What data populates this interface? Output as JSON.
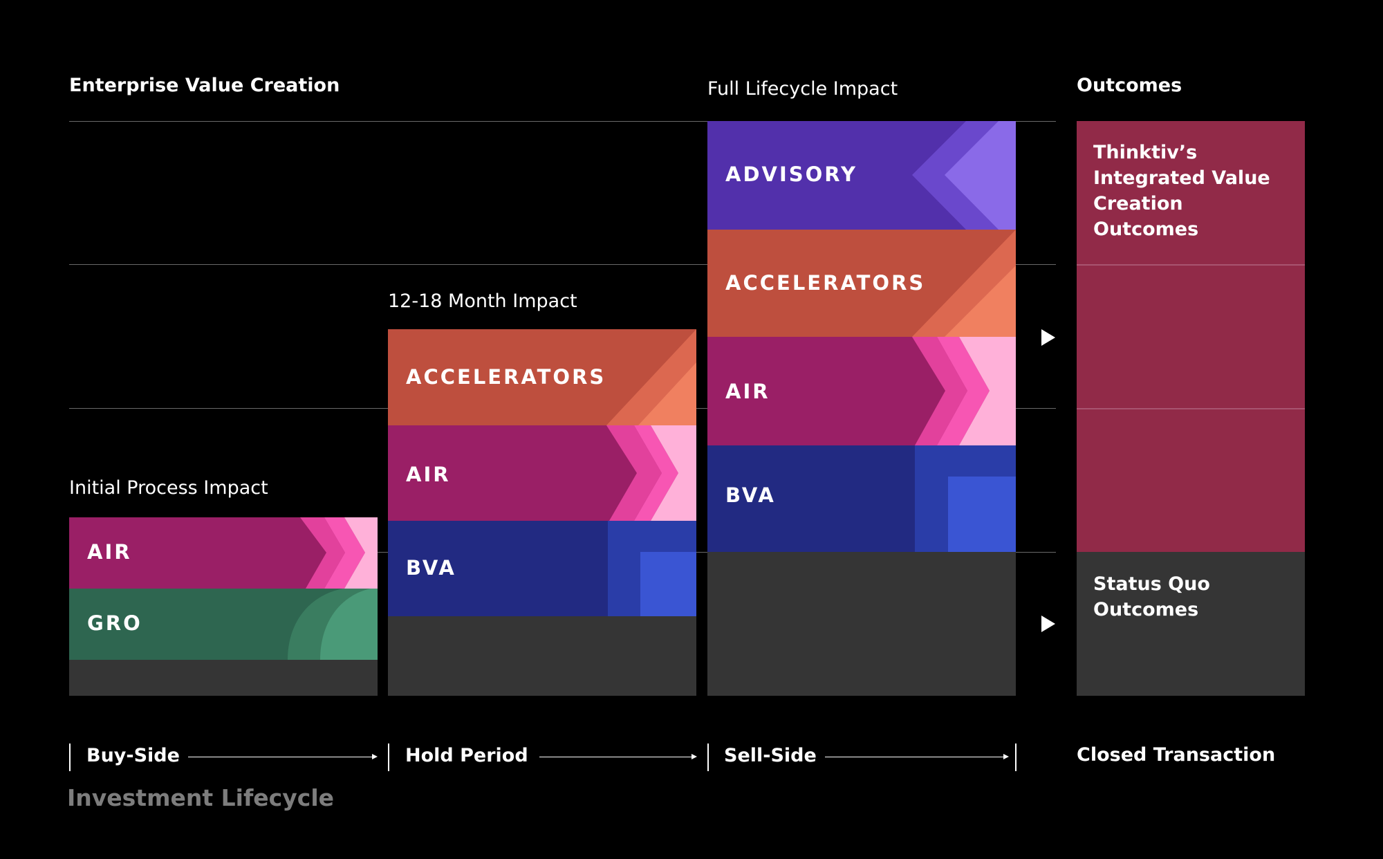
{
  "headers": {
    "enterprise": "Enterprise Value Creation",
    "outcomes": "Outcomes",
    "initial": "Initial Process Impact",
    "month": "12-18 Month Impact",
    "full": "Full Lifecycle Impact"
  },
  "columns": {
    "buy": {
      "air": "AIR",
      "gro": "GRO"
    },
    "hold": {
      "accelerators": "ACCELERATORS",
      "air": "AIR",
      "bva": "BVA"
    },
    "sell": {
      "advisory": "ADVISORY",
      "accelerators": "ACCELERATORS",
      "air": "AIR",
      "bva": "BVA"
    }
  },
  "outcomes": {
    "integrated": "Thinktiv’s Integrated Value Creation Outcomes",
    "status_quo": "Status Quo Outcomes"
  },
  "stages": {
    "buy": "Buy-Side",
    "hold": "Hold Period",
    "sell": "Sell-Side",
    "closed": "Closed Transaction"
  },
  "footer": "Investment Lifecycle",
  "colors": {
    "air": "#9a1f66",
    "gro": "#2e6650",
    "accelerators": "#be4f3e",
    "bva": "#222a82",
    "advisory": "#5230ab",
    "outcome": "#912a48",
    "status_quo": "#353535"
  }
}
